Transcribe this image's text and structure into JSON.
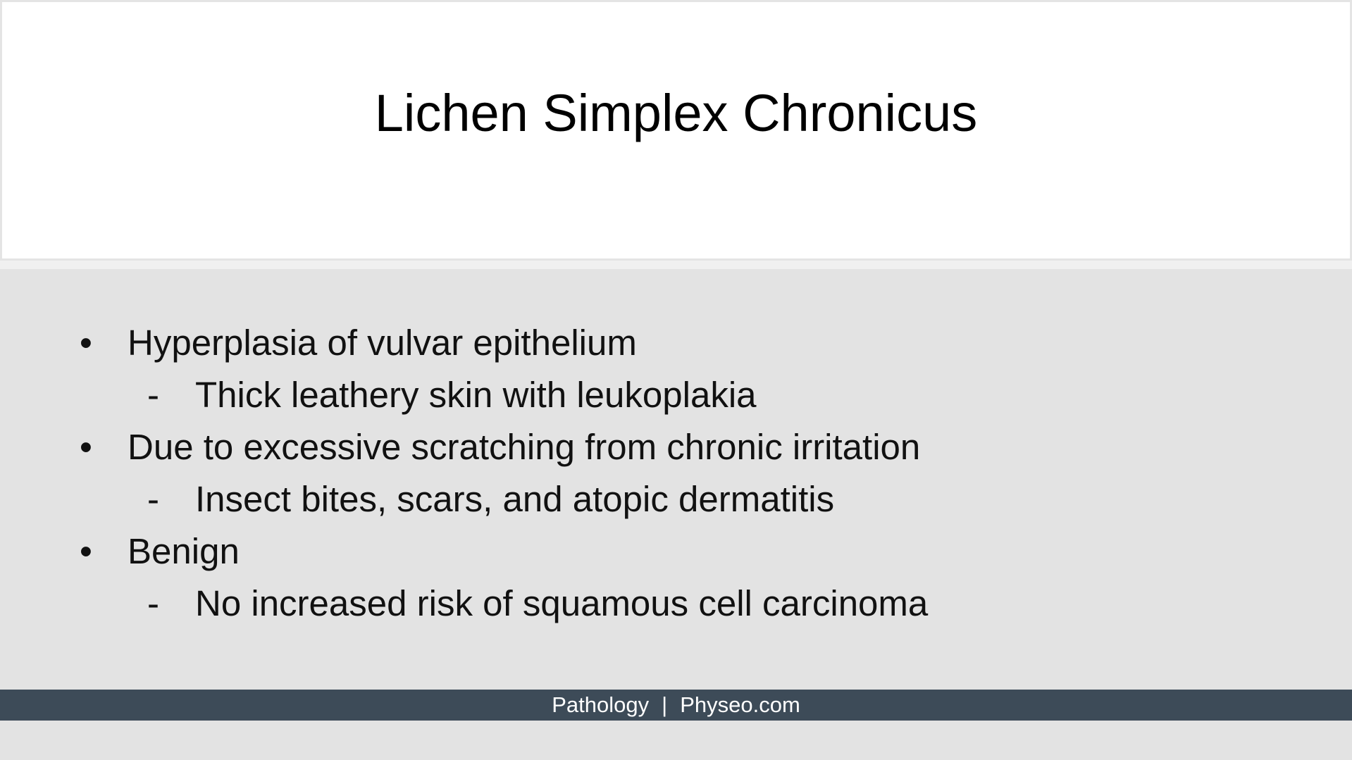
{
  "slide": {
    "title": "Lichen Simplex Chronicus",
    "items": [
      {
        "level": 1,
        "marker": "•",
        "text": "Hyperplasia of vulvar epithelium"
      },
      {
        "level": 2,
        "marker": "-",
        "text": "Thick leathery skin with leukoplakia"
      },
      {
        "level": 1,
        "marker": "•",
        "text": "Due to excessive scratching from chronic irritation"
      },
      {
        "level": 2,
        "marker": "-",
        "text": "Insect bites, scars, and atopic dermatitis"
      },
      {
        "level": 1,
        "marker": "•",
        "text": "Benign"
      },
      {
        "level": 2,
        "marker": "-",
        "text": "No increased risk of squamous cell carcinoma"
      }
    ]
  },
  "footer": {
    "left": "Pathology",
    "separator": "|",
    "right": "Physeo.com"
  },
  "colors": {
    "background": "#e3e3e3",
    "title_panel": "#ffffff",
    "footer_bar": "#3d4b58",
    "footer_text": "#ffffff"
  }
}
